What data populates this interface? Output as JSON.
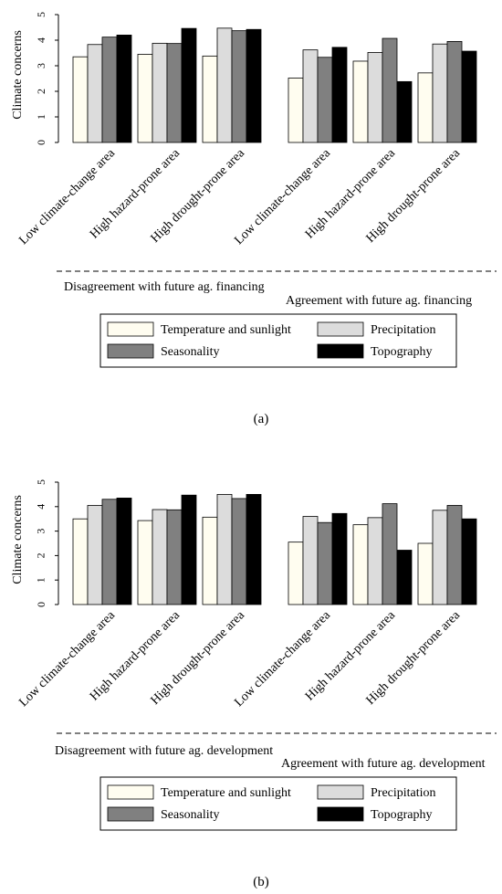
{
  "chart_data": [
    {
      "type": "bar",
      "panel_label": "(a)",
      "ylabel": "Climate concerns",
      "ylim": [
        0,
        5
      ],
      "yticks": [
        "0",
        "1",
        "2",
        "3",
        "4",
        "5"
      ],
      "categories": [
        "Low climate-change area",
        "High hazard-prone area",
        "High drought-prone area",
        "Low climate-change area",
        "High hazard-prone area",
        "High drought-prone area"
      ],
      "group_labels": [
        "Disagreement with future ag. financing",
        "Agreement with future ag. financing"
      ],
      "series": [
        {
          "name": "Temperature and sunlight",
          "color": "#fffdf0",
          "values": [
            3.35,
            3.45,
            3.38,
            2.52,
            3.18,
            2.72
          ]
        },
        {
          "name": "Precipitation",
          "color": "#dcdcdc",
          "values": [
            3.83,
            3.88,
            4.47,
            3.62,
            3.52,
            3.85
          ]
        },
        {
          "name": "Seasonality",
          "color": "#808080",
          "values": [
            4.12,
            3.87,
            4.37,
            3.33,
            4.07,
            3.95
          ]
        },
        {
          "name": "Topography",
          "color": "#000000",
          "values": [
            4.2,
            4.46,
            4.42,
            3.72,
            2.38,
            3.57
          ]
        }
      ],
      "grid": false,
      "legend_position": "bottom"
    },
    {
      "type": "bar",
      "panel_label": "(b)",
      "ylabel": "Climate concerns",
      "ylim": [
        0,
        5
      ],
      "yticks": [
        "0",
        "1",
        "2",
        "3",
        "4",
        "5"
      ],
      "categories": [
        "Low climate-change area",
        "High hazard-prone area",
        "High drought-prone area",
        "Low climate-change area",
        "High hazard-prone area",
        "High drought-prone area"
      ],
      "group_labels": [
        "Disagreement with future ag. development",
        "Agreement with future ag. development"
      ],
      "series": [
        {
          "name": "Temperature and sunlight",
          "color": "#fffdf0",
          "values": [
            3.5,
            3.43,
            3.57,
            2.55,
            3.26,
            2.5
          ]
        },
        {
          "name": "Precipitation",
          "color": "#dcdcdc",
          "values": [
            4.05,
            3.88,
            4.5,
            3.6,
            3.55,
            3.85
          ]
        },
        {
          "name": "Seasonality",
          "color": "#808080",
          "values": [
            4.3,
            3.87,
            4.33,
            3.35,
            4.12,
            4.05
          ]
        },
        {
          "name": "Topography",
          "color": "#000000",
          "values": [
            4.35,
            4.47,
            4.5,
            3.72,
            2.22,
            3.5
          ]
        }
      ],
      "grid": false,
      "legend_position": "bottom"
    }
  ]
}
